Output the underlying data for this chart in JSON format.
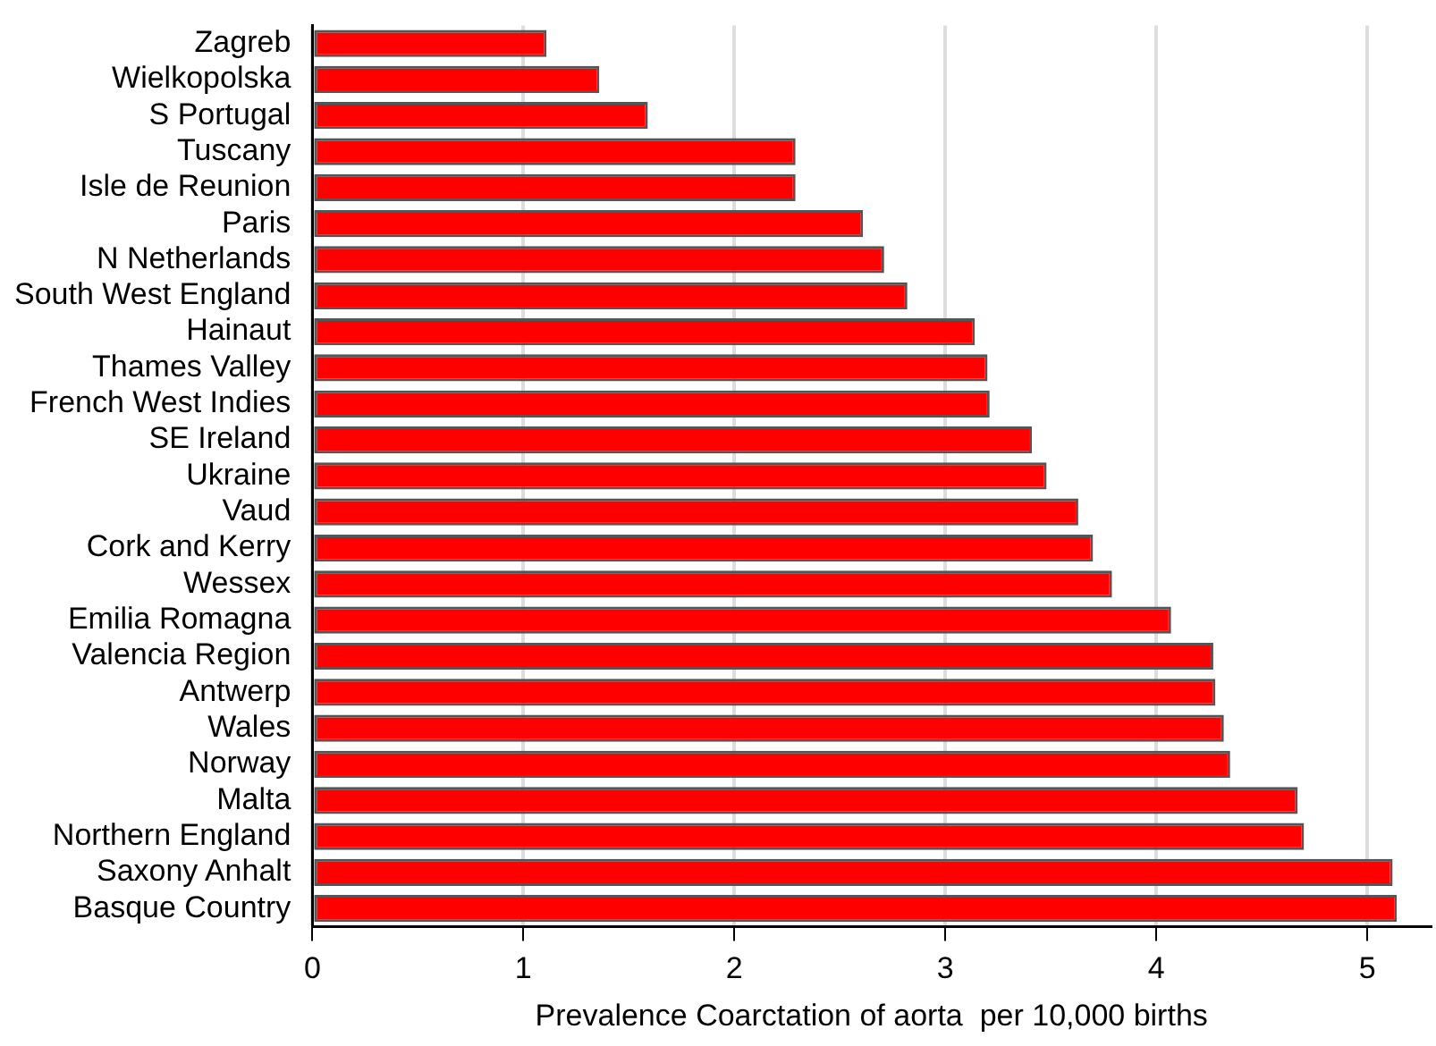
{
  "chart_data": {
    "type": "bar",
    "orientation": "horizontal",
    "xlabel": "Prevalence Coarctation of aorta  per 10,000 births",
    "categories": [
      "Zagreb",
      "Wielkopolska",
      "S Portugal",
      "Tuscany",
      "Isle de Reunion",
      "Paris",
      "N Netherlands",
      "South West England",
      "Hainaut",
      "Thames Valley",
      "French West Indies",
      "SE Ireland",
      "Ukraine",
      "Vaud",
      "Cork and Kerry",
      "Wessex",
      "Emilia Romagna",
      "Valencia Region",
      "Antwerp",
      "Wales",
      "Norway",
      "Malta",
      "Northern England",
      "Saxony Anhalt",
      "Basque Country"
    ],
    "values": [
      1.11,
      1.36,
      1.59,
      2.29,
      2.29,
      2.61,
      2.71,
      2.82,
      3.14,
      3.2,
      3.21,
      3.41,
      3.48,
      3.63,
      3.7,
      3.79,
      4.07,
      4.27,
      4.28,
      4.32,
      4.35,
      4.67,
      4.7,
      5.12,
      5.14
    ],
    "color": "#ff0000",
    "xlim": [
      0,
      5.3
    ],
    "xticks": [
      0,
      1,
      2,
      3,
      4,
      5
    ],
    "grid": "x",
    "legend": false
  }
}
